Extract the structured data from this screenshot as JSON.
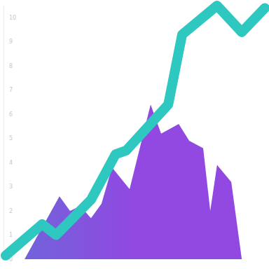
{
  "chart_data": {
    "type": "line",
    "xlim": [
      0,
      100
    ],
    "ylim": [
      0,
      10.5
    ],
    "yticks": [
      0,
      1,
      2,
      3,
      4,
      5,
      6,
      7,
      8,
      9,
      10
    ],
    "grid": false,
    "tick_labels": "y",
    "series": [
      {
        "type": "area",
        "color": "#8b3fe0",
        "x": [
          8,
          21.3,
          25.3,
          29.3,
          33.3,
          37.3,
          41.3,
          48,
          56,
          60,
          66.7,
          70.7,
          76,
          78.7,
          81.3,
          86.7,
          90.7
        ],
        "values": [
          0,
          2.6,
          2.0,
          2.2,
          1.7,
          2.3,
          3.8,
          2.9,
          6.4,
          5.2,
          5.6,
          4.9,
          4.6,
          2.0,
          3.9,
          3.2,
          0
        ]
      },
      {
        "type": "line",
        "color": "#2ec8c0",
        "x": [
          0.8,
          14.7,
          20,
          33.3,
          42.7,
          46.7,
          62.7,
          68,
          81.3,
          90.7,
          99.5
        ],
        "values": [
          0.15,
          1.45,
          1.0,
          2.46,
          4.35,
          4.5,
          6.4,
          9.3,
          10.5,
          9.4,
          10.4
        ]
      }
    ]
  }
}
